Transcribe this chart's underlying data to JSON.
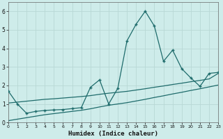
{
  "xlabel": "Humidex (Indice chaleur)",
  "bg_color": "#ceecea",
  "grid_color": "#b8d8d5",
  "line_color": "#1e6b6b",
  "x_data": [
    0,
    1,
    2,
    3,
    4,
    5,
    6,
    7,
    8,
    9,
    10,
    11,
    12,
    13,
    14,
    15,
    16,
    17,
    18,
    19,
    20,
    21,
    22,
    23
  ],
  "y_main": [
    1.7,
    1.0,
    0.5,
    0.6,
    0.65,
    0.68,
    0.7,
    0.75,
    0.8,
    1.9,
    2.3,
    1.0,
    1.85,
    4.4,
    5.3,
    6.0,
    5.2,
    3.3,
    3.9,
    2.9,
    2.4,
    1.95,
    2.65,
    2.7
  ],
  "y_trend1": [
    1.05,
    1.1,
    1.15,
    1.2,
    1.25,
    1.28,
    1.32,
    1.36,
    1.4,
    1.45,
    1.52,
    1.58,
    1.63,
    1.68,
    1.75,
    1.82,
    1.9,
    1.97,
    2.05,
    2.12,
    2.2,
    2.27,
    2.35,
    2.65
  ],
  "y_trend2": [
    0.1,
    0.18,
    0.26,
    0.34,
    0.42,
    0.48,
    0.54,
    0.6,
    0.66,
    0.74,
    0.84,
    0.93,
    1.0,
    1.07,
    1.16,
    1.25,
    1.35,
    1.44,
    1.54,
    1.63,
    1.73,
    1.82,
    1.92,
    2.02
  ],
  "xlim": [
    0,
    23
  ],
  "ylim": [
    0,
    6.5
  ],
  "yticks": [
    0,
    1,
    2,
    3,
    4,
    5,
    6
  ],
  "xticks": [
    0,
    1,
    2,
    3,
    4,
    5,
    6,
    7,
    8,
    9,
    10,
    11,
    12,
    13,
    14,
    15,
    16,
    17,
    18,
    19,
    20,
    21,
    22,
    23
  ]
}
